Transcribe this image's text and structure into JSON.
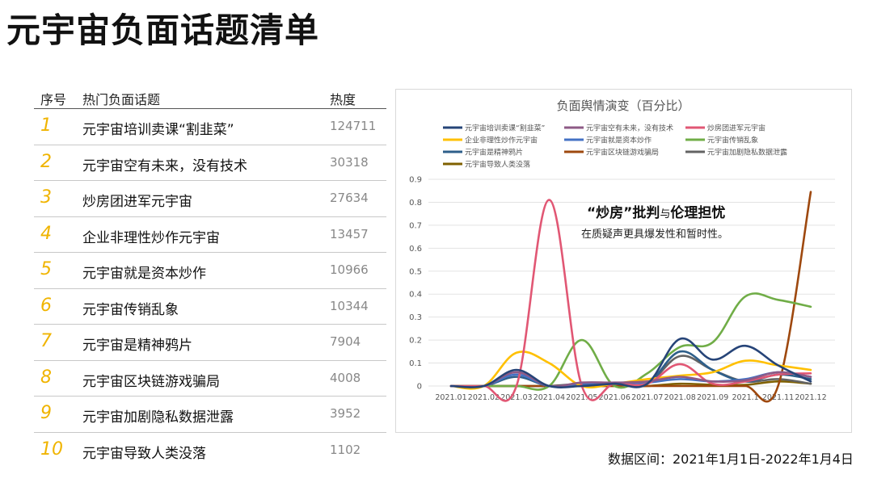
{
  "page": {
    "title": "元宇宙负面话题清单",
    "footnote": "数据区间：2021年1月1日-2022年1月4日"
  },
  "table": {
    "headers": {
      "rank": "序号",
      "topic": "热门负面话题",
      "heat": "热度"
    },
    "rows": [
      {
        "rank": "1",
        "topic": "元宇宙培训卖课“割韭菜”",
        "heat": "124711"
      },
      {
        "rank": "2",
        "topic": "元宇宙空有未来，没有技术",
        "heat": "30318"
      },
      {
        "rank": "3",
        "topic": "炒房团进军元宇宙",
        "heat": "27634"
      },
      {
        "rank": "4",
        "topic": "企业非理性炒作元宇宙",
        "heat": "13457"
      },
      {
        "rank": "5",
        "topic": "元宇宙就是资本炒作",
        "heat": "10966"
      },
      {
        "rank": "6",
        "topic": "元宇宙传销乱象",
        "heat": "10344"
      },
      {
        "rank": "7",
        "topic": "元宇宙是精神鸦片",
        "heat": "7904"
      },
      {
        "rank": "8",
        "topic": "元宇宙区块链游戏骗局",
        "heat": "4008"
      },
      {
        "rank": "9",
        "topic": "元宇宙加剧隐私数据泄露",
        "heat": "3952"
      },
      {
        "rank": "10",
        "topic": "元宇宙导致人类没落",
        "heat": "1102"
      }
    ]
  },
  "chart_data": {
    "type": "line",
    "title": "负面舆情演变（百分比）",
    "annotation": {
      "q1": "“炒房”",
      "mid": "批判",
      "yu": "与",
      "q2": "伦理担忧",
      "line2": "在质疑声更具爆发性和暂时性。"
    },
    "categories": [
      "2021.01",
      "2021.02",
      "2021.03",
      "2021.04",
      "2021.05",
      "2021.06",
      "2021.07",
      "2021.08",
      "2021.09",
      "2021.1",
      "2021.11",
      "2021.12"
    ],
    "ylim": [
      0,
      0.9
    ],
    "yticks": [
      "0",
      "0.1",
      "0.2",
      "0.3",
      "0.4",
      "0.5",
      "0.6",
      "0.7",
      "0.8",
      "0.9"
    ],
    "legend_position": "top",
    "grid": "horizontal",
    "series": [
      {
        "name": "元宇宙培训卖课“割韭菜”",
        "color": "#264478",
        "values": [
          0,
          0,
          0.07,
          0,
          0,
          0.01,
          0.01,
          0.205,
          0.115,
          0.175,
          0.09,
          0.02
        ]
      },
      {
        "name": "元宇宙空有未来，没有技术",
        "color": "#8e5a86",
        "values": [
          0,
          0,
          0.06,
          0,
          0.015,
          0.015,
          0.02,
          0.04,
          0.02,
          0.025,
          0.06,
          0.04
        ]
      },
      {
        "name": "炒房团进军元宇宙",
        "color": "#e15774",
        "values": [
          0,
          0,
          0,
          0.81,
          0,
          0.01,
          0.01,
          0.095,
          0.01,
          0.02,
          0.05,
          0.055
        ]
      },
      {
        "name": "企业非理性炒作元宇宙",
        "color": "#ffc000",
        "values": [
          0,
          0,
          0.145,
          0.1,
          0,
          0.01,
          0.03,
          0.045,
          0.06,
          0.11,
          0.09,
          0.07
        ]
      },
      {
        "name": "元宇宙就是资本炒作",
        "color": "#4472c4",
        "values": [
          0,
          0,
          0.05,
          0,
          0.01,
          0.01,
          0.015,
          0.03,
          0.02,
          0.03,
          0.06,
          0.04
        ]
      },
      {
        "name": "元宇宙传销乱象",
        "color": "#70ad47",
        "values": [
          0,
          0,
          0,
          0,
          0.2,
          0,
          0.055,
          0.17,
          0.19,
          0.39,
          0.375,
          0.345
        ]
      },
      {
        "name": "元宇宙是精神鸦片",
        "color": "#2e5f8a",
        "values": [
          0,
          0,
          0.04,
          0,
          0.01,
          0.01,
          0.01,
          0.15,
          0.07,
          0.02,
          0.05,
          0.03
        ]
      },
      {
        "name": "元宇宙区块链游戏骗局",
        "color": "#9e480e",
        "values": [
          0,
          0,
          0,
          0,
          0,
          0,
          0,
          0,
          0,
          0,
          0,
          0.845
        ]
      },
      {
        "name": "元宇宙加剧隐私数据泄露",
        "color": "#636363",
        "values": [
          0,
          0,
          0,
          0,
          0.01,
          0.01,
          0.01,
          0.13,
          0.07,
          0.02,
          0.03,
          0.01
        ]
      },
      {
        "name": "元宇宙导致人类没落",
        "color": "#7f6000",
        "values": [
          0,
          0,
          0,
          0,
          0,
          0,
          0,
          0.01,
          0.005,
          0.005,
          0.02,
          0.01
        ]
      }
    ]
  }
}
